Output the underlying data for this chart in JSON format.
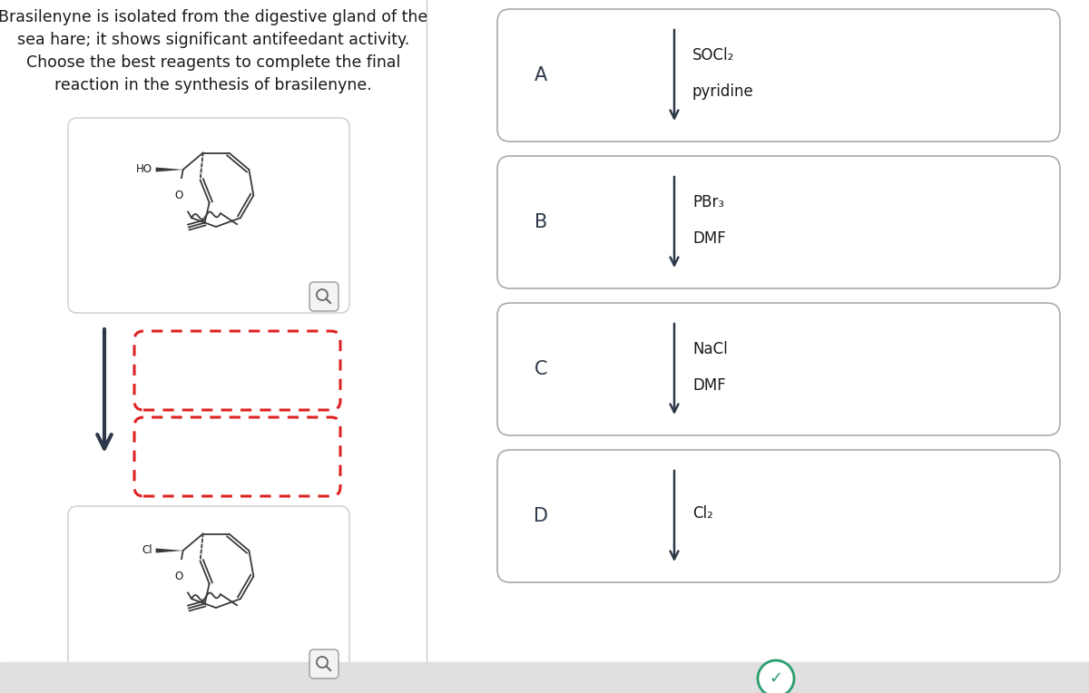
{
  "title_text": "Brasilenyne is isolated from the digestive gland of the\nsea hare; it shows significant antifeedant activity.\nChoose the best reagents to complete the final\nreaction in the synthesis of brasilenyne.",
  "title_fontsize": 12.5,
  "bg_color": "#ffffff",
  "options": [
    {
      "label": "A",
      "reagents": [
        "SOCl₂",
        "pyridine"
      ]
    },
    {
      "label": "B",
      "reagents": [
        "PBr₃",
        "DMF"
      ]
    },
    {
      "label": "C",
      "reagents": [
        "NaCl",
        "DMF"
      ]
    },
    {
      "label": "D",
      "reagents": [
        "Cl₂",
        ""
      ]
    }
  ],
  "arrow_color": "#2d3848",
  "label_color": "#2d3848",
  "reagent_color": "#1a1a1a",
  "dashed_box_color": "#dd2222",
  "checkmark_color": "#2a9d6e",
  "footer_bg": "#e0e0e0",
  "box_edge_color": "#aaaaaa",
  "divider_color": "#cccccc",
  "mol_box_edge": "#cccccc",
  "bond_color": "#3a3a3a"
}
